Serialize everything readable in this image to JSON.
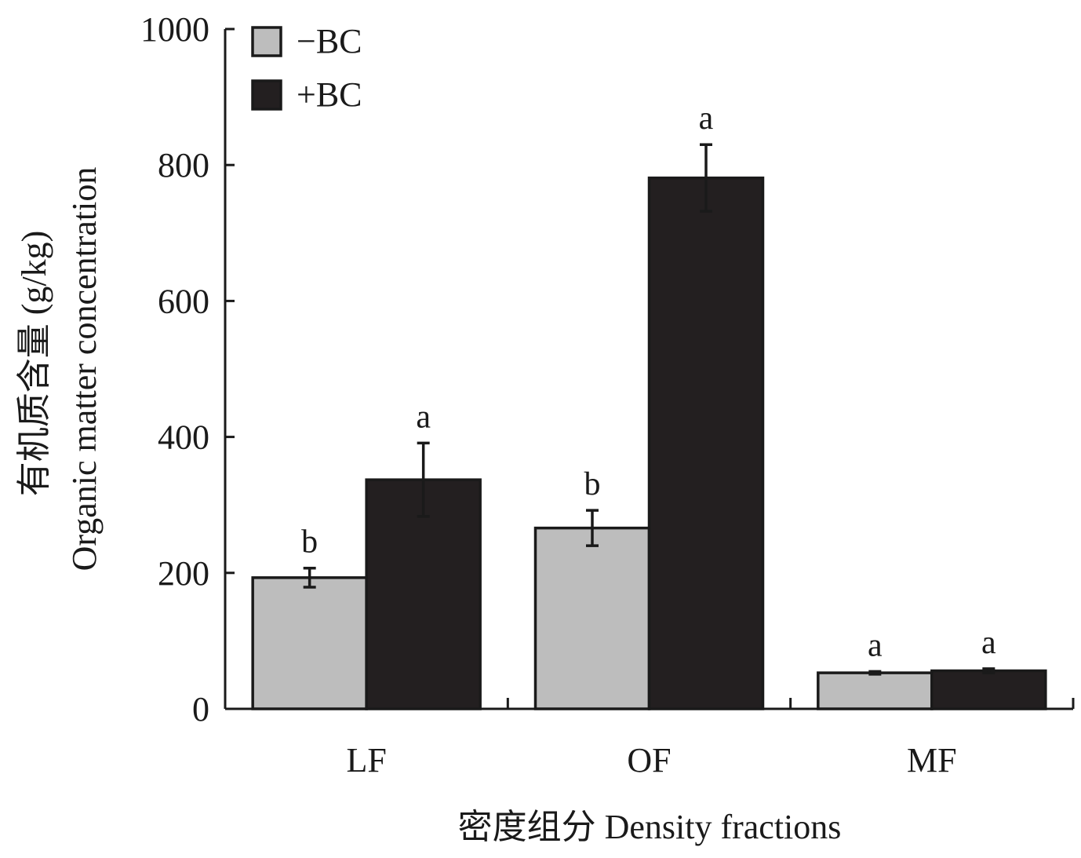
{
  "chart_data": {
    "type": "bar",
    "categories": [
      "LF",
      "OF",
      "MF"
    ],
    "series": [
      {
        "name": "−BC",
        "color": "#bdbdbd",
        "values": [
          193,
          266,
          53
        ],
        "errors": [
          14,
          26,
          2
        ],
        "significance": [
          "b",
          "b",
          "a"
        ]
      },
      {
        "name": "+BC",
        "color": "#231f20",
        "values": [
          337,
          781,
          56
        ],
        "errors": [
          54,
          49,
          3
        ],
        "significance": [
          "a",
          "a",
          "a"
        ]
      }
    ],
    "ylim": [
      0,
      1000
    ],
    "yticks": [
      "0",
      "200",
      "400",
      "600",
      "800",
      "1000"
    ],
    "ylabel_line1": "有机质含量 (g/kg)",
    "ylabel_line2": "Organic matter concentration",
    "xlabel": "密度组分 Density fractions",
    "legend_position": "top-left",
    "grid": false
  }
}
